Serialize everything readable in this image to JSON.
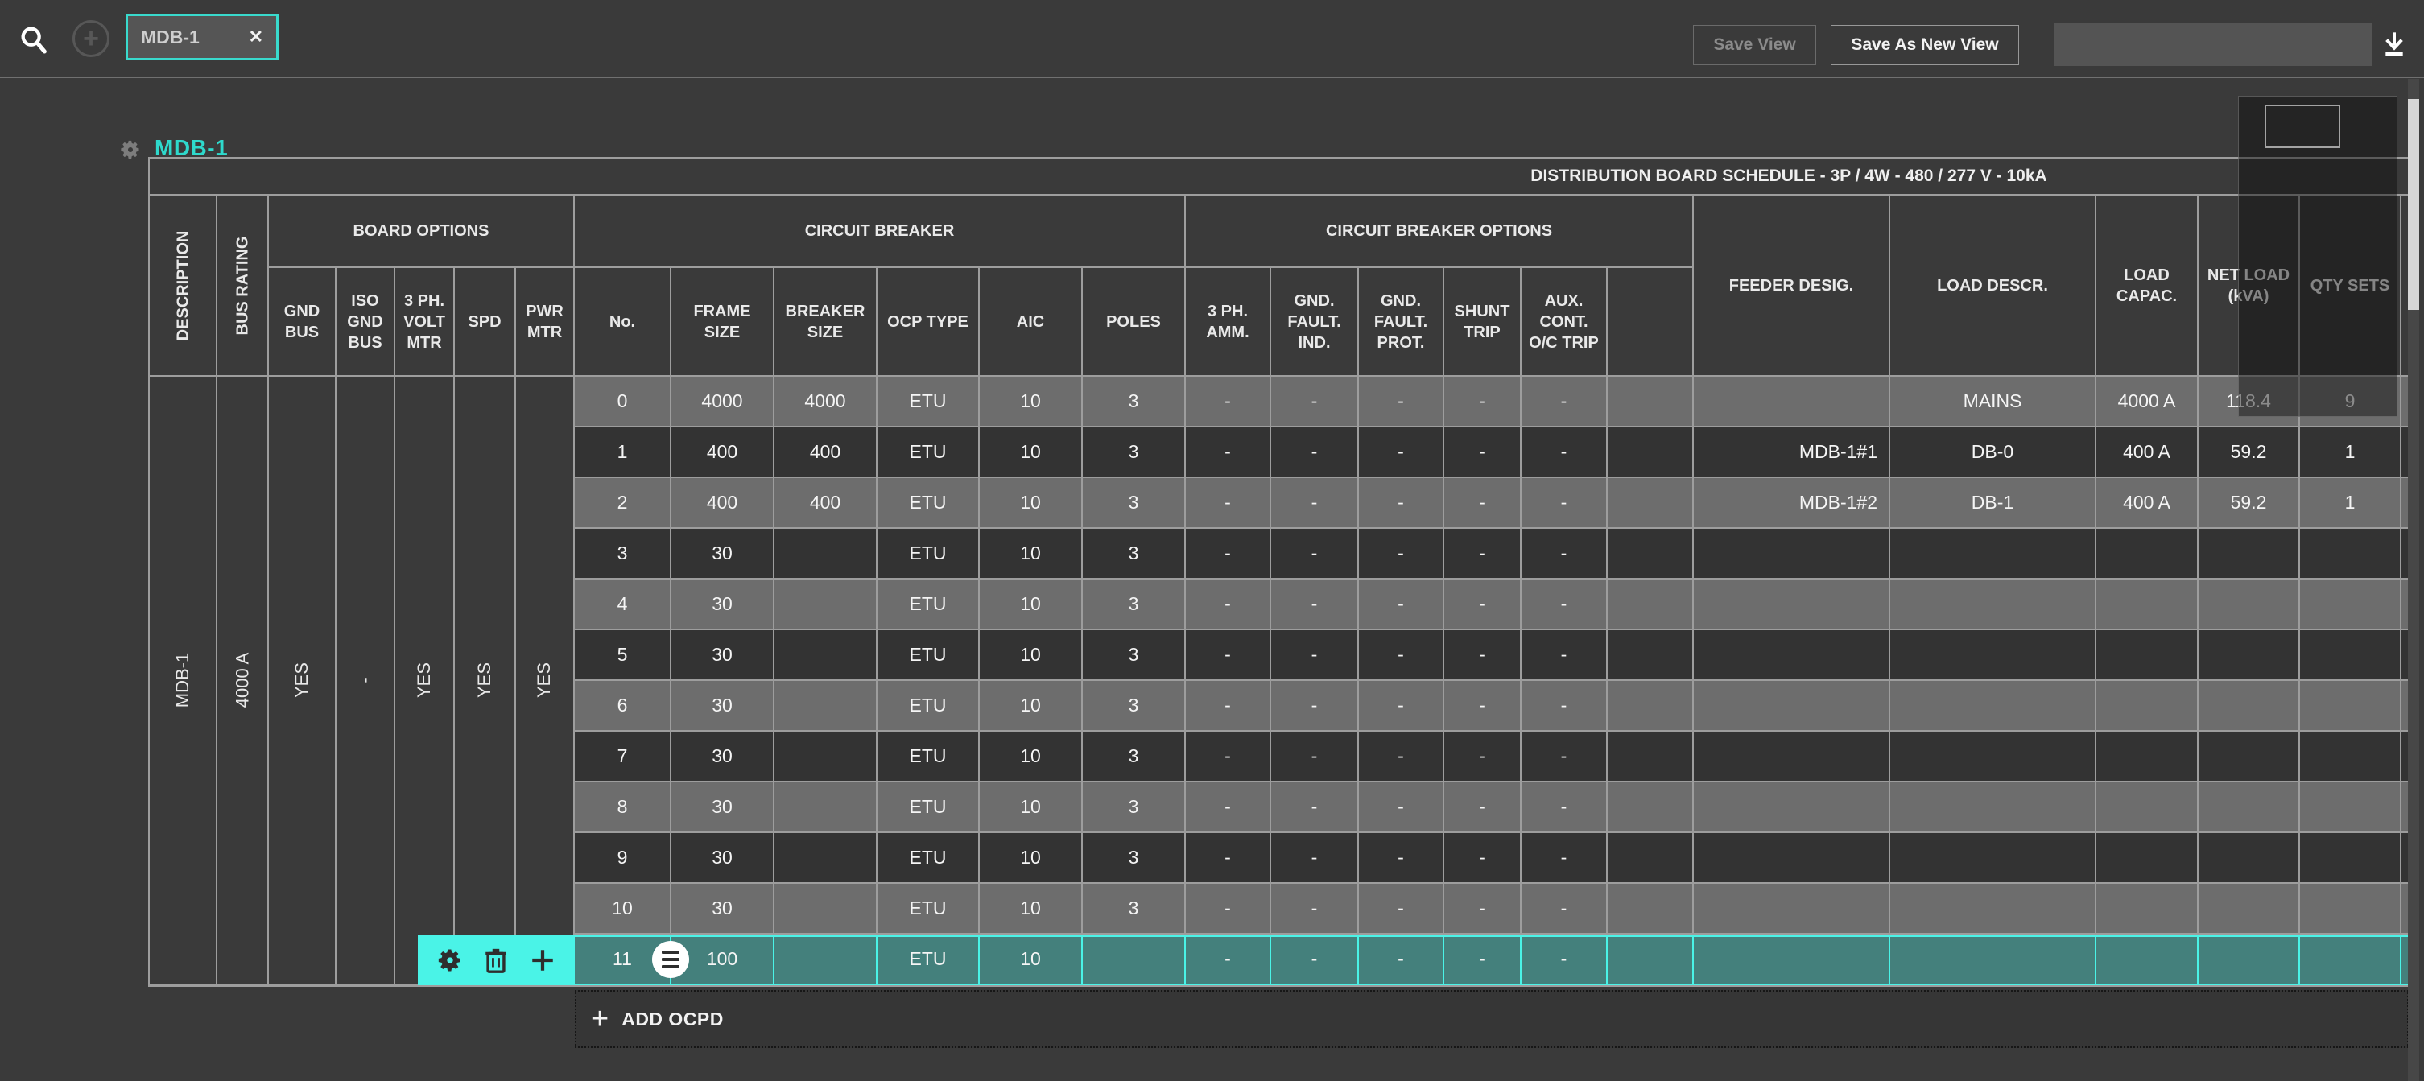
{
  "top_bar": {
    "filter_chip": {
      "label": "MDB-1",
      "close_glyph": "✕"
    },
    "save_view_label": "Save View",
    "save_as_new_view_label": "Save As New View",
    "view_name_input": {
      "value": "",
      "placeholder": ""
    }
  },
  "panel": {
    "title": "MDB-1"
  },
  "table": {
    "title": "DISTRIBUTION BOARD SCHEDULE - 3P / 4W - 480 / 277 V - 10kA",
    "groups": {
      "board_options": "BOARD OPTIONS",
      "circuit_breaker": "CIRCUIT BREAKER",
      "circuit_breaker_options": "CIRCUIT BREAKER OPTIONS"
    },
    "columns": {
      "description": "DESCRIPTION",
      "bus_rating": "BUS RATING",
      "gnd_bus": "GND BUS",
      "iso_gnd_bus": "ISO GND BUS",
      "volt_mtr": "3 PH. VOLT MTR",
      "spd": "SPD",
      "pwr_mtr": "PWR MTR",
      "no": "No.",
      "frame_size": "FRAME SIZE",
      "breaker_size": "BREAKER SIZE",
      "ocp_type": "OCP TYPE",
      "aic": "AIC",
      "poles": "POLES",
      "ph3_amm": "3 PH. AMM.",
      "gnd_fault_ind": "GND. FAULT. IND.",
      "gnd_fault_prot": "GND. FAULT. PROT.",
      "shunt_trip": "SHUNT TRIP",
      "aux_cont": "AUX. CONT. O/C TRIP",
      "feeder_desig": "FEEDER DESIG.",
      "load_descr": "LOAD DESCR.",
      "load_capac": "LOAD CAPAC.",
      "net_load": "NET LOAD (kVA)",
      "qty_sets": "QTY SETS"
    },
    "board_info": {
      "description": "MDB-1",
      "bus_rating": "4000 A",
      "gnd_bus": "YES",
      "iso_gnd_bus": "-",
      "volt_mtr": "YES",
      "spd": "YES",
      "pwr_mtr": "YES"
    },
    "rows": [
      {
        "no": "0",
        "frame_size": "4000",
        "breaker_size": "4000",
        "ocp_type": "ETU",
        "aic": "10",
        "poles": "3",
        "ph3_amm": "-",
        "gnd_fault_ind": "-",
        "gnd_fault_prot": "-",
        "shunt_trip": "-",
        "aux_cont": "-",
        "opt_blank": "",
        "feeder_desig": "",
        "load_descr": "MAINS",
        "load_capac": "4000 A",
        "net_load": "118.4",
        "qty_sets": "9",
        "selected": false
      },
      {
        "no": "1",
        "frame_size": "400",
        "breaker_size": "400",
        "ocp_type": "ETU",
        "aic": "10",
        "poles": "3",
        "ph3_amm": "-",
        "gnd_fault_ind": "-",
        "gnd_fault_prot": "-",
        "shunt_trip": "-",
        "aux_cont": "-",
        "opt_blank": "",
        "feeder_desig": "MDB-1#1",
        "load_descr": "DB-0",
        "load_capac": "400 A",
        "net_load": "59.2",
        "qty_sets": "1",
        "selected": false
      },
      {
        "no": "2",
        "frame_size": "400",
        "breaker_size": "400",
        "ocp_type": "ETU",
        "aic": "10",
        "poles": "3",
        "ph3_amm": "-",
        "gnd_fault_ind": "-",
        "gnd_fault_prot": "-",
        "shunt_trip": "-",
        "aux_cont": "-",
        "opt_blank": "",
        "feeder_desig": "MDB-1#2",
        "load_descr": "DB-1",
        "load_capac": "400 A",
        "net_load": "59.2",
        "qty_sets": "1",
        "selected": false
      },
      {
        "no": "3",
        "frame_size": "30",
        "breaker_size": "",
        "ocp_type": "ETU",
        "aic": "10",
        "poles": "3",
        "ph3_amm": "-",
        "gnd_fault_ind": "-",
        "gnd_fault_prot": "-",
        "shunt_trip": "-",
        "aux_cont": "-",
        "opt_blank": "",
        "feeder_desig": "",
        "load_descr": "",
        "load_capac": "",
        "net_load": "",
        "qty_sets": "",
        "selected": false
      },
      {
        "no": "4",
        "frame_size": "30",
        "breaker_size": "",
        "ocp_type": "ETU",
        "aic": "10",
        "poles": "3",
        "ph3_amm": "-",
        "gnd_fault_ind": "-",
        "gnd_fault_prot": "-",
        "shunt_trip": "-",
        "aux_cont": "-",
        "opt_blank": "",
        "feeder_desig": "",
        "load_descr": "",
        "load_capac": "",
        "net_load": "",
        "qty_sets": "",
        "selected": false
      },
      {
        "no": "5",
        "frame_size": "30",
        "breaker_size": "",
        "ocp_type": "ETU",
        "aic": "10",
        "poles": "3",
        "ph3_amm": "-",
        "gnd_fault_ind": "-",
        "gnd_fault_prot": "-",
        "shunt_trip": "-",
        "aux_cont": "-",
        "opt_blank": "",
        "feeder_desig": "",
        "load_descr": "",
        "load_capac": "",
        "net_load": "",
        "qty_sets": "",
        "selected": false
      },
      {
        "no": "6",
        "frame_size": "30",
        "breaker_size": "",
        "ocp_type": "ETU",
        "aic": "10",
        "poles": "3",
        "ph3_amm": "-",
        "gnd_fault_ind": "-",
        "gnd_fault_prot": "-",
        "shunt_trip": "-",
        "aux_cont": "-",
        "opt_blank": "",
        "feeder_desig": "",
        "load_descr": "",
        "load_capac": "",
        "net_load": "",
        "qty_sets": "",
        "selected": false
      },
      {
        "no": "7",
        "frame_size": "30",
        "breaker_size": "",
        "ocp_type": "ETU",
        "aic": "10",
        "poles": "3",
        "ph3_amm": "-",
        "gnd_fault_ind": "-",
        "gnd_fault_prot": "-",
        "shunt_trip": "-",
        "aux_cont": "-",
        "opt_blank": "",
        "feeder_desig": "",
        "load_descr": "",
        "load_capac": "",
        "net_load": "",
        "qty_sets": "",
        "selected": false
      },
      {
        "no": "8",
        "frame_size": "30",
        "breaker_size": "",
        "ocp_type": "ETU",
        "aic": "10",
        "poles": "3",
        "ph3_amm": "-",
        "gnd_fault_ind": "-",
        "gnd_fault_prot": "-",
        "shunt_trip": "-",
        "aux_cont": "-",
        "opt_blank": "",
        "feeder_desig": "",
        "load_descr": "",
        "load_capac": "",
        "net_load": "",
        "qty_sets": "",
        "selected": false
      },
      {
        "no": "9",
        "frame_size": "30",
        "breaker_size": "",
        "ocp_type": "ETU",
        "aic": "10",
        "poles": "3",
        "ph3_amm": "-",
        "gnd_fault_ind": "-",
        "gnd_fault_prot": "-",
        "shunt_trip": "-",
        "aux_cont": "-",
        "opt_blank": "",
        "feeder_desig": "",
        "load_descr": "",
        "load_capac": "",
        "net_load": "",
        "qty_sets": "",
        "selected": false
      },
      {
        "no": "10",
        "frame_size": "30",
        "breaker_size": "",
        "ocp_type": "ETU",
        "aic": "10",
        "poles": "3",
        "ph3_amm": "-",
        "gnd_fault_ind": "-",
        "gnd_fault_prot": "-",
        "shunt_trip": "-",
        "aux_cont": "-",
        "opt_blank": "",
        "feeder_desig": "",
        "load_descr": "",
        "load_capac": "",
        "net_load": "",
        "qty_sets": "",
        "selected": false
      },
      {
        "no": "11",
        "frame_size": "100",
        "breaker_size": "",
        "ocp_type": "ETU",
        "aic": "10",
        "poles": "",
        "ph3_amm": "-",
        "gnd_fault_ind": "-",
        "gnd_fault_prot": "-",
        "shunt_trip": "-",
        "aux_cont": "-",
        "opt_blank": "",
        "feeder_desig": "",
        "load_descr": "",
        "load_capac": "",
        "net_load": "",
        "qty_sets": "",
        "selected": true
      }
    ],
    "add_ocpd_label": "ADD OCPD"
  },
  "colors": {
    "accent_title": "#2ed9cc",
    "chip_border": "#39dacd",
    "selection_border": "#4af3e7",
    "selection_fill": "#44807c",
    "row_light": "#6d6d6d",
    "row_dark": "#333333",
    "grid_border": "#9d9d9d"
  }
}
